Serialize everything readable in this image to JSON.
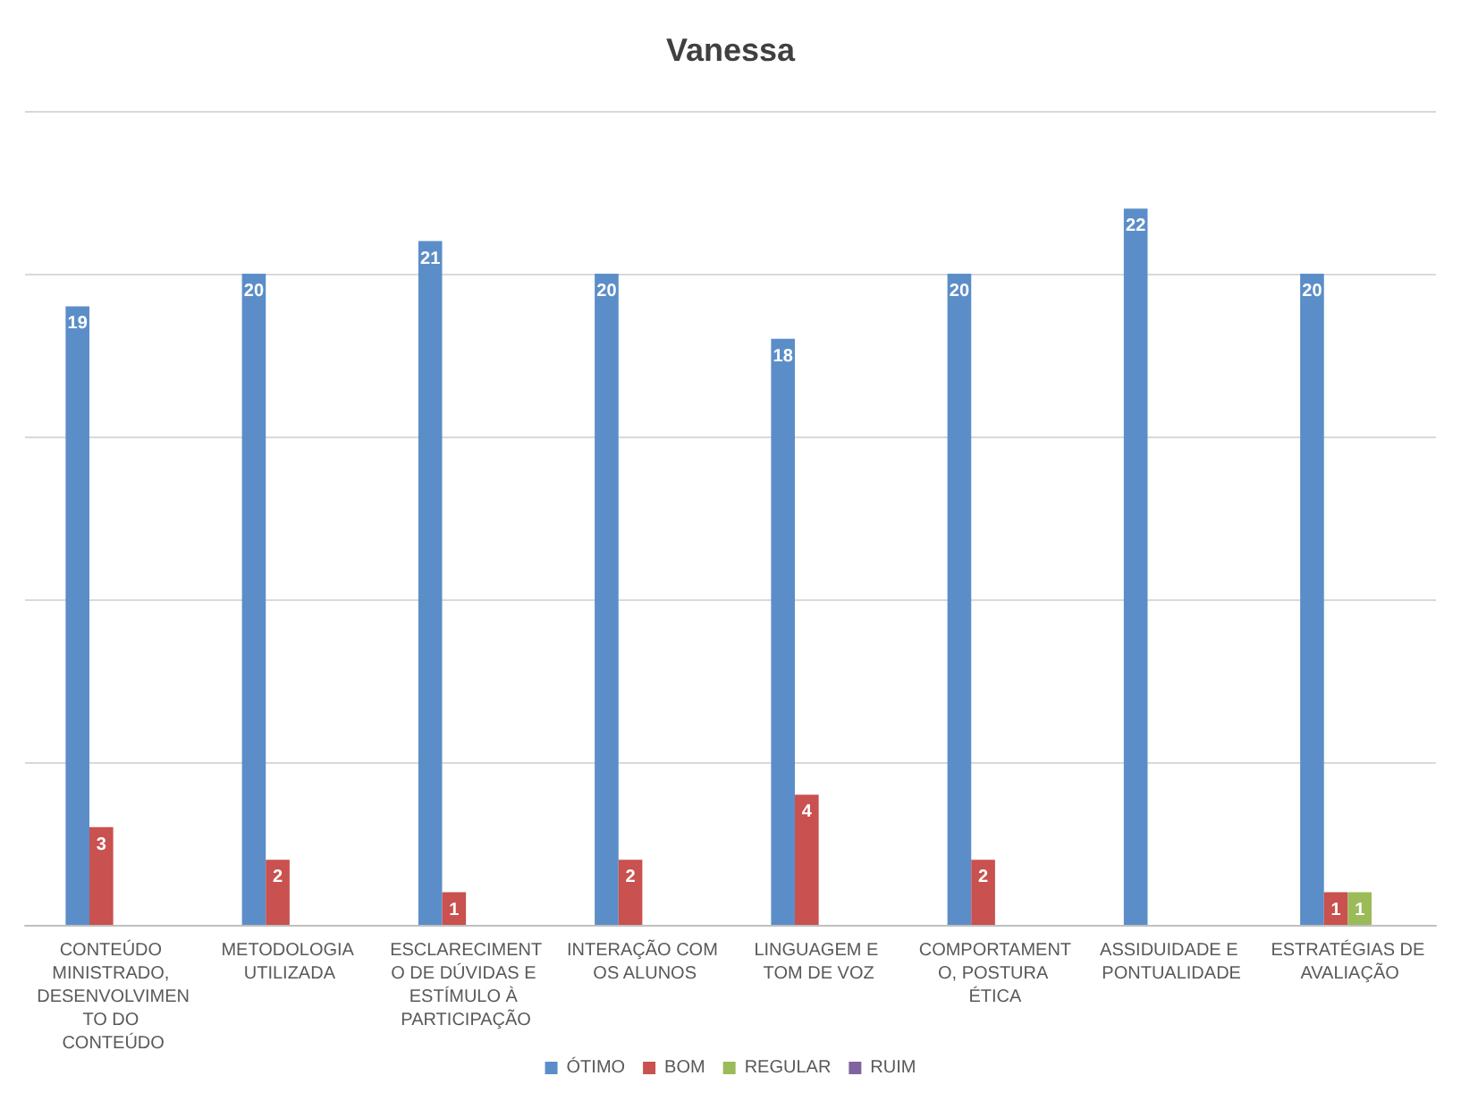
{
  "chart_data": {
    "type": "bar",
    "title": "Vanessa",
    "categories": [
      "CONTEÚDO MINISTRADO, DESENVOLVIMENTO DO CONTEÚDO",
      "METODOLOGIA UTILIZADA",
      "ESCLARECIMENTO DE DÚVIDAS E ESTÍMULO À PARTICIPAÇÃO",
      "INTERAÇÃO COM OS ALUNOS",
      "LINGUAGEM E TOM DE VOZ",
      "COMPORTAMENTO, POSTURA ÉTICA",
      "ASSIDUIDADE E PONTUALIDADE",
      "ESTRATÉGIAS DE AVALIAÇÃO"
    ],
    "series": [
      {
        "name": "ÓTIMO",
        "color": "#5b8ec8",
        "values": [
          19,
          20,
          21,
          20,
          18,
          20,
          22,
          20
        ]
      },
      {
        "name": "BOM",
        "color": "#c9514f",
        "values": [
          3,
          2,
          1,
          2,
          4,
          2,
          null,
          1
        ]
      },
      {
        "name": "REGULAR",
        "color": "#9bbb59",
        "values": [
          null,
          null,
          null,
          null,
          null,
          null,
          null,
          1
        ]
      },
      {
        "name": "RUIM",
        "color": "#8064a2",
        "values": [
          null,
          null,
          null,
          null,
          null,
          null,
          null,
          null
        ]
      }
    ],
    "ylim": [
      0,
      25
    ],
    "yticks": [
      {
        "value": 0,
        "label": null
      },
      {
        "value": 5,
        "label": null
      },
      {
        "value": 10,
        "label": null
      },
      {
        "value": 15,
        "label": null
      },
      {
        "value": 20,
        "label": null
      },
      {
        "value": 25,
        "label": null
      }
    ],
    "tick_labels": "x",
    "grid": "y",
    "legend": "bottom",
    "data_labels": true
  }
}
